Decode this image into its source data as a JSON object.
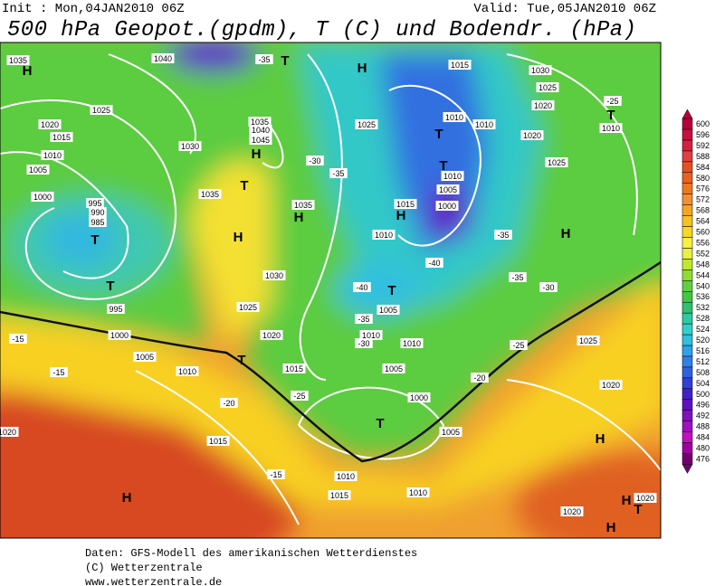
{
  "header": {
    "init": "Init : Mon,04JAN2010 06Z",
    "valid": "Valid: Tue,05JAN2010 06Z",
    "title": "500 hPa Geopot.(gpdm), T (C) und Bodendr. (hPa)"
  },
  "colorbar": {
    "levels": [
      476,
      480,
      484,
      488,
      492,
      496,
      500,
      504,
      508,
      512,
      516,
      520,
      524,
      528,
      532,
      536,
      540,
      544,
      548,
      552,
      556,
      560,
      564,
      568,
      572,
      576,
      580,
      584,
      588,
      592,
      596,
      600
    ],
    "colors": [
      "#700070",
      "#a000a0",
      "#c010c0",
      "#a010c0",
      "#8010c0",
      "#6010c0",
      "#4020c8",
      "#3040d8",
      "#3060e0",
      "#3080e8",
      "#30a0e8",
      "#30c0e0",
      "#30d0c8",
      "#30c8a0",
      "#30c070",
      "#40c840",
      "#60d040",
      "#90dc30",
      "#c0e830",
      "#e8f040",
      "#f8f040",
      "#f8d820",
      "#f8c020",
      "#f5a520",
      "#f29030",
      "#ee7820",
      "#ea6020",
      "#e65020",
      "#e04040",
      "#d82040",
      "#c8103f",
      "#b8003a"
    ]
  },
  "map": {
    "labels": [
      "1035",
      "H",
      "1040",
      "-35",
      "T",
      "H",
      "1015",
      "1030",
      "1025",
      "1020",
      "1025",
      "1020",
      "1015",
      "1010",
      "1005",
      "1000",
      "995",
      "990",
      "985",
      "T",
      "T",
      "995",
      "1000",
      "1005",
      "1010",
      "1015",
      "1015",
      "1010",
      "1010",
      "1020",
      "1020",
      "1020",
      "1025",
      "1025",
      "1020",
      "1010",
      "-25",
      "T",
      "1025",
      "1010",
      "1010",
      "T",
      "T",
      "1005",
      "1000",
      "1010",
      "1015",
      "H",
      "1010",
      "-40",
      "T",
      "1005",
      "1010",
      "1010",
      "1005",
      "1000",
      "T",
      "1005",
      "H",
      "T",
      "1035",
      "1035",
      "H",
      "1030",
      "1025",
      "1020",
      "1015",
      "T",
      "H",
      "H",
      "H",
      "H",
      "T",
      "H",
      "1020",
      "-15",
      "-15",
      "-20",
      "-15",
      "-25",
      "-20",
      "-25",
      "-30",
      "-35",
      "-35",
      "-35",
      "-30",
      "-40",
      "-35",
      "-30",
      "1030",
      "1040",
      "1045",
      "H",
      "1035"
    ]
  },
  "footer": {
    "lines": [
      "Daten: GFS-Modell des amerikanischen Wetterdienstes",
      "(C) Wetterzentrale",
      "www.wetterzentrale.de"
    ]
  }
}
